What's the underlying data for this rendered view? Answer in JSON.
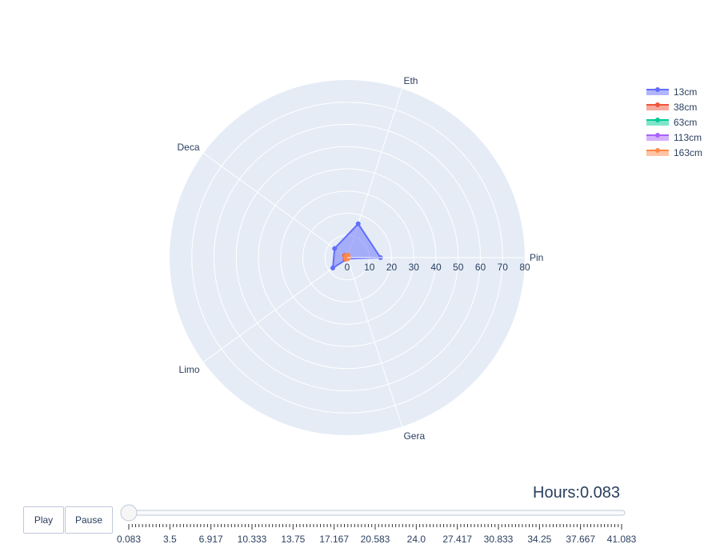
{
  "chart_data": {
    "type": "radar",
    "theta_categories": [
      "Pin",
      "Eth",
      "Deca",
      "Limo",
      "Gera"
    ],
    "radial_axis": {
      "range": [
        0,
        80
      ],
      "tick_values": [
        0,
        10,
        20,
        30,
        40,
        50,
        60,
        70,
        80
      ],
      "tick_labels": [
        "0",
        "10",
        "20",
        "30",
        "40",
        "50",
        "60",
        "70",
        "80"
      ]
    },
    "series": [
      {
        "name": "13cm",
        "color": "#636efa",
        "values": [
          15,
          16,
          7,
          8,
          0.5
        ]
      },
      {
        "name": "38cm",
        "color": "#ef553b",
        "values": [
          0.5,
          1,
          1.5,
          1.2,
          0.5
        ]
      },
      {
        "name": "63cm",
        "color": "#00cc96",
        "values": [
          0.3,
          0.5,
          0.6,
          0.5,
          0.3
        ]
      },
      {
        "name": "113cm",
        "color": "#ab63fa",
        "values": [
          0.3,
          0.4,
          0.5,
          0.4,
          0.3
        ]
      },
      {
        "name": "163cm",
        "color": "#ff8a4c",
        "values": [
          0.6,
          1.2,
          1.0,
          0.8,
          0.5
        ]
      }
    ],
    "legend_position": "top-right",
    "grid": true,
    "background_color": "#e5ecf6"
  },
  "slider": {
    "current_label": "Hours:0.083",
    "tick_labels": [
      "0.083",
      "3.5",
      "6.917",
      "10.333",
      "13.75",
      "17.167",
      "20.583",
      "24.0",
      "27.417",
      "30.833",
      "34.25",
      "37.667",
      "41.083"
    ],
    "current_value": 0.083
  },
  "controls": {
    "play_label": "Play",
    "pause_label": "Pause"
  }
}
